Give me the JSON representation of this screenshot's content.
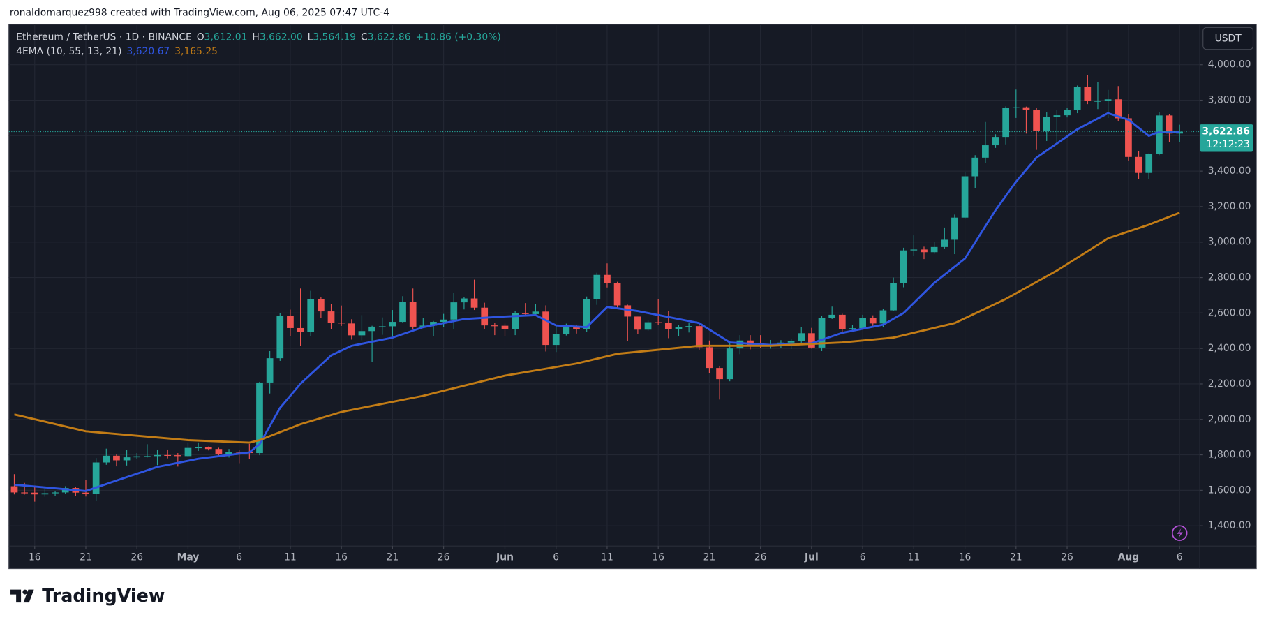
{
  "header": {
    "attribution": "ronaldomarquez998 created with TradingView.com, Aug 06, 2025 07:47 UTC-4",
    "symbol": "Ethereum / TetherUS · 1D · BINANCE",
    "ohlc": [
      {
        "label": "O",
        "value": "3,612.01"
      },
      {
        "label": "H",
        "value": "3,662.00"
      },
      {
        "label": "L",
        "value": "3,564.19"
      },
      {
        "label": "C",
        "value": "3,622.86"
      }
    ],
    "change": "+10.86 (+0.30%)",
    "indicator": "4EMA (10, 55, 13, 21)",
    "indicator_values": [
      "3,620.67",
      "3,165.25"
    ],
    "currency": "USDT",
    "last_price": "3,622.86",
    "countdown": "12:12:23",
    "brand": "TradingView"
  },
  "chart_data": {
    "type": "candlestick",
    "up_color": "#26a69a",
    "down_color": "#ef5350",
    "grid": true,
    "x": [
      "Apr 14",
      "Apr 15",
      "Apr 16",
      "Apr 17",
      "Apr 18",
      "Apr 19",
      "Apr 20",
      "Apr 21",
      "Apr 22",
      "Apr 23",
      "Apr 24",
      "Apr 25",
      "Apr 26",
      "Apr 27",
      "Apr 28",
      "Apr 29",
      "Apr 30",
      "May 1",
      "May 2",
      "May 3",
      "May 4",
      "May 5",
      "May 6",
      "May 7",
      "May 8",
      "May 9",
      "May 10",
      "May 11",
      "May 12",
      "May 13",
      "May 14",
      "May 15",
      "May 16",
      "May 17",
      "May 18",
      "May 19",
      "May 20",
      "May 21",
      "May 22",
      "May 23",
      "May 24",
      "May 25",
      "May 26",
      "May 27",
      "May 28",
      "May 29",
      "May 30",
      "May 31",
      "Jun 1",
      "Jun 2",
      "Jun 3",
      "Jun 4",
      "Jun 5",
      "Jun 6",
      "Jun 7",
      "Jun 8",
      "Jun 9",
      "Jun 10",
      "Jun 11",
      "Jun 12",
      "Jun 13",
      "Jun 14",
      "Jun 15",
      "Jun 16",
      "Jun 17",
      "Jun 18",
      "Jun 19",
      "Jun 20",
      "Jun 21",
      "Jun 22",
      "Jun 23",
      "Jun 24",
      "Jun 25",
      "Jun 26",
      "Jun 27",
      "Jun 28",
      "Jun 29",
      "Jun 30",
      "Jul 1",
      "Jul 2",
      "Jul 3",
      "Jul 4",
      "Jul 5",
      "Jul 6",
      "Jul 7",
      "Jul 8",
      "Jul 9",
      "Jul 10",
      "Jul 11",
      "Jul 12",
      "Jul 13",
      "Jul 14",
      "Jul 15",
      "Jul 16",
      "Jul 17",
      "Jul 18",
      "Jul 19",
      "Jul 20",
      "Jul 21",
      "Jul 22",
      "Jul 23",
      "Jul 24",
      "Jul 25",
      "Jul 26",
      "Jul 27",
      "Jul 28",
      "Jul 29",
      "Jul 30",
      "Jul 31",
      "Aug 1",
      "Aug 2",
      "Aug 3",
      "Aug 4",
      "Aug 5",
      "Aug 6"
    ],
    "ohlc": [
      [
        1623,
        1691,
        1577,
        1588
      ],
      [
        1588,
        1642,
        1576,
        1587
      ],
      [
        1587,
        1619,
        1536,
        1577
      ],
      [
        1577,
        1613,
        1564,
        1584
      ],
      [
        1584,
        1595,
        1570,
        1588
      ],
      [
        1588,
        1623,
        1580,
        1613
      ],
      [
        1613,
        1620,
        1570,
        1587
      ],
      [
        1587,
        1660,
        1565,
        1578
      ],
      [
        1578,
        1782,
        1542,
        1757
      ],
      [
        1757,
        1835,
        1744,
        1795
      ],
      [
        1795,
        1802,
        1735,
        1769
      ],
      [
        1769,
        1829,
        1740,
        1786
      ],
      [
        1786,
        1810,
        1776,
        1792
      ],
      [
        1792,
        1860,
        1785,
        1793
      ],
      [
        1793,
        1830,
        1742,
        1799
      ],
      [
        1799,
        1830,
        1780,
        1798
      ],
      [
        1798,
        1810,
        1734,
        1793
      ],
      [
        1793,
        1870,
        1790,
        1839
      ],
      [
        1839,
        1870,
        1822,
        1842
      ],
      [
        1842,
        1847,
        1825,
        1833
      ],
      [
        1833,
        1840,
        1795,
        1806
      ],
      [
        1806,
        1833,
        1785,
        1817
      ],
      [
        1817,
        1828,
        1753,
        1815
      ],
      [
        1815,
        1862,
        1777,
        1810
      ],
      [
        1810,
        2212,
        1798,
        2208
      ],
      [
        2208,
        2385,
        2146,
        2345
      ],
      [
        2345,
        2600,
        2330,
        2582
      ],
      [
        2582,
        2619,
        2468,
        2515
      ],
      [
        2515,
        2738,
        2415,
        2493
      ],
      [
        2493,
        2725,
        2468,
        2680
      ],
      [
        2680,
        2688,
        2572,
        2609
      ],
      [
        2609,
        2650,
        2508,
        2546
      ],
      [
        2546,
        2642,
        2527,
        2541
      ],
      [
        2541,
        2565,
        2450,
        2474
      ],
      [
        2474,
        2588,
        2446,
        2498
      ],
      [
        2498,
        2528,
        2325,
        2523
      ],
      [
        2523,
        2575,
        2477,
        2525
      ],
      [
        2525,
        2617,
        2468,
        2550
      ],
      [
        2550,
        2695,
        2544,
        2663
      ],
      [
        2663,
        2738,
        2510,
        2523
      ],
      [
        2523,
        2572,
        2517,
        2529
      ],
      [
        2529,
        2555,
        2468,
        2550
      ],
      [
        2550,
        2595,
        2520,
        2563
      ],
      [
        2563,
        2713,
        2507,
        2660
      ],
      [
        2660,
        2692,
        2620,
        2682
      ],
      [
        2682,
        2788,
        2617,
        2630
      ],
      [
        2630,
        2658,
        2511,
        2530
      ],
      [
        2530,
        2544,
        2475,
        2528
      ],
      [
        2528,
        2540,
        2470,
        2508
      ],
      [
        2508,
        2610,
        2475,
        2601
      ],
      [
        2601,
        2656,
        2581,
        2594
      ],
      [
        2594,
        2651,
        2592,
        2608
      ],
      [
        2608,
        2643,
        2383,
        2420
      ],
      [
        2420,
        2525,
        2380,
        2481
      ],
      [
        2481,
        2540,
        2473,
        2525
      ],
      [
        2525,
        2534,
        2484,
        2510
      ],
      [
        2510,
        2693,
        2492,
        2677
      ],
      [
        2677,
        2827,
        2646,
        2815
      ],
      [
        2815,
        2880,
        2744,
        2770
      ],
      [
        2770,
        2776,
        2628,
        2643
      ],
      [
        2643,
        2647,
        2440,
        2580
      ],
      [
        2580,
        2580,
        2481,
        2506
      ],
      [
        2506,
        2557,
        2500,
        2548
      ],
      [
        2548,
        2680,
        2532,
        2543
      ],
      [
        2543,
        2613,
        2458,
        2510
      ],
      [
        2510,
        2533,
        2468,
        2520
      ],
      [
        2520,
        2545,
        2490,
        2526
      ],
      [
        2526,
        2547,
        2391,
        2407
      ],
      [
        2407,
        2445,
        2260,
        2290
      ],
      [
        2290,
        2300,
        2112,
        2227
      ],
      [
        2227,
        2440,
        2215,
        2400
      ],
      [
        2400,
        2475,
        2368,
        2445
      ],
      [
        2445,
        2475,
        2395,
        2420
      ],
      [
        2420,
        2475,
        2402,
        2416
      ],
      [
        2416,
        2448,
        2399,
        2423
      ],
      [
        2423,
        2447,
        2404,
        2433
      ],
      [
        2433,
        2455,
        2397,
        2440
      ],
      [
        2440,
        2522,
        2431,
        2486
      ],
      [
        2486,
        2516,
        2399,
        2405
      ],
      [
        2405,
        2583,
        2385,
        2571
      ],
      [
        2571,
        2636,
        2566,
        2590
      ],
      [
        2590,
        2596,
        2480,
        2510
      ],
      [
        2510,
        2534,
        2494,
        2514
      ],
      [
        2514,
        2590,
        2509,
        2572
      ],
      [
        2572,
        2587,
        2518,
        2541
      ],
      [
        2541,
        2625,
        2522,
        2615
      ],
      [
        2615,
        2800,
        2610,
        2770
      ],
      [
        2770,
        2968,
        2745,
        2953
      ],
      [
        2953,
        3038,
        2921,
        2958
      ],
      [
        2958,
        2974,
        2904,
        2943
      ],
      [
        2943,
        2999,
        2934,
        2972
      ],
      [
        2972,
        3082,
        2961,
        3013
      ],
      [
        3013,
        3155,
        2932,
        3138
      ],
      [
        3138,
        3397,
        3134,
        3371
      ],
      [
        3371,
        3490,
        3305,
        3476
      ],
      [
        3476,
        3677,
        3446,
        3546
      ],
      [
        3546,
        3608,
        3531,
        3593
      ],
      [
        3593,
        3765,
        3551,
        3756
      ],
      [
        3756,
        3860,
        3700,
        3760
      ],
      [
        3760,
        3764,
        3612,
        3743
      ],
      [
        3743,
        3758,
        3520,
        3628
      ],
      [
        3628,
        3731,
        3570,
        3706
      ],
      [
        3706,
        3746,
        3559,
        3715
      ],
      [
        3715,
        3758,
        3703,
        3745
      ],
      [
        3745,
        3883,
        3727,
        3873
      ],
      [
        3873,
        3940,
        3778,
        3795
      ],
      [
        3795,
        3903,
        3750,
        3796
      ],
      [
        3796,
        3858,
        3700,
        3805
      ],
      [
        3805,
        3880,
        3680,
        3698
      ],
      [
        3698,
        3720,
        3460,
        3480
      ],
      [
        3480,
        3513,
        3355,
        3390
      ],
      [
        3390,
        3500,
        3355,
        3497
      ],
      [
        3497,
        3735,
        3490,
        3714
      ],
      [
        3714,
        3720,
        3562,
        3612
      ],
      [
        3612.01,
        3662.0,
        3564.19,
        3622.86
      ]
    ],
    "series": [
      {
        "color": "#2f55e0",
        "x": [
          "Apr 14",
          "Apr 21",
          "Apr 24",
          "Apr 28",
          "May 2",
          "May 7",
          "May 8",
          "May 10",
          "May 12",
          "May 15",
          "May 17",
          "May 21",
          "May 24",
          "May 28",
          "Jun 1",
          "Jun 4",
          "Jun 6",
          "Jun 9",
          "Jun 11",
          "Jun 14",
          "Jun 18",
          "Jun 20",
          "Jun 23",
          "Jun 27",
          "Jul 1",
          "Jul 4",
          "Jul 8",
          "Jul 10",
          "Jul 13",
          "Jul 16",
          "Jul 19",
          "Jul 21",
          "Jul 23",
          "Jul 27",
          "Jul 30",
          "Aug 1",
          "Aug 3",
          "Aug 4",
          "Aug 6"
        ],
        "values": [
          1632,
          1596,
          1655,
          1732,
          1778,
          1814,
          1860,
          2065,
          2201,
          2361,
          2415,
          2461,
          2520,
          2566,
          2580,
          2588,
          2530,
          2520,
          2634,
          2611,
          2566,
          2543,
          2434,
          2420,
          2429,
          2488,
          2534,
          2600,
          2770,
          2907,
          3180,
          3340,
          3476,
          3636,
          3727,
          3690,
          3599,
          3622,
          3620.67
        ]
      },
      {
        "color": "#c27c16",
        "x": [
          "Apr 14",
          "Apr 21",
          "May 1",
          "May 7",
          "May 8",
          "May 12",
          "May 16",
          "May 24",
          "Jun 1",
          "Jun 8",
          "Jun 12",
          "Jun 20",
          "Jun 27",
          "Jul 4",
          "Jul 9",
          "Jul 15",
          "Jul 20",
          "Jul 25",
          "Jul 30",
          "Aug 3",
          "Aug 6"
        ],
        "values": [
          2028,
          1933,
          1883,
          1869,
          1883,
          1973,
          2042,
          2133,
          2247,
          2315,
          2370,
          2415,
          2415,
          2434,
          2461,
          2543,
          2679,
          2839,
          3021,
          3098,
          3165.25
        ]
      }
    ],
    "ylim": [
      1286,
      4228
    ],
    "yticks": [
      {
        "value": 4000,
        "label": "4,000.00"
      },
      {
        "value": 3800,
        "label": "3,800.00"
      },
      {
        "value": 3600,
        "label": "3,600.00"
      },
      {
        "value": 3400,
        "label": "3,400.00"
      },
      {
        "value": 3200,
        "label": "3,200.00"
      },
      {
        "value": 3000,
        "label": "3,000.00"
      },
      {
        "value": 2800,
        "label": "2,800.00"
      },
      {
        "value": 2600,
        "label": "2,600.00"
      },
      {
        "value": 2400,
        "label": "2,400.00"
      },
      {
        "value": 2200,
        "label": "2,200.00"
      },
      {
        "value": 2000,
        "label": "2,000.00"
      },
      {
        "value": 1800,
        "label": "1,800.00"
      },
      {
        "value": 1600,
        "label": "1,600.00"
      },
      {
        "value": 1400,
        "label": "1,400.00"
      }
    ],
    "xticks": [
      {
        "value": "Apr 16",
        "label": "16"
      },
      {
        "value": "Apr 21",
        "label": "21"
      },
      {
        "value": "Apr 26",
        "label": "26"
      },
      {
        "value": "May 1",
        "label": "May"
      },
      {
        "value": "May 6",
        "label": "6"
      },
      {
        "value": "May 11",
        "label": "11"
      },
      {
        "value": "May 16",
        "label": "16"
      },
      {
        "value": "May 21",
        "label": "21"
      },
      {
        "value": "May 26",
        "label": "26"
      },
      {
        "value": "Jun 1",
        "label": "Jun"
      },
      {
        "value": "Jun 6",
        "label": "6"
      },
      {
        "value": "Jun 11",
        "label": "11"
      },
      {
        "value": "Jun 16",
        "label": "16"
      },
      {
        "value": "Jun 21",
        "label": "21"
      },
      {
        "value": "Jun 26",
        "label": "26"
      },
      {
        "value": "Jul 1",
        "label": "Jul"
      },
      {
        "value": "Jul 6",
        "label": "6"
      },
      {
        "value": "Jul 11",
        "label": "11"
      },
      {
        "value": "Jul 16",
        "label": "16"
      },
      {
        "value": "Jul 21",
        "label": "21"
      },
      {
        "value": "Jul 26",
        "label": "26"
      },
      {
        "value": "Aug 1",
        "label": "Aug"
      },
      {
        "value": "Aug 6",
        "label": "6"
      }
    ]
  }
}
